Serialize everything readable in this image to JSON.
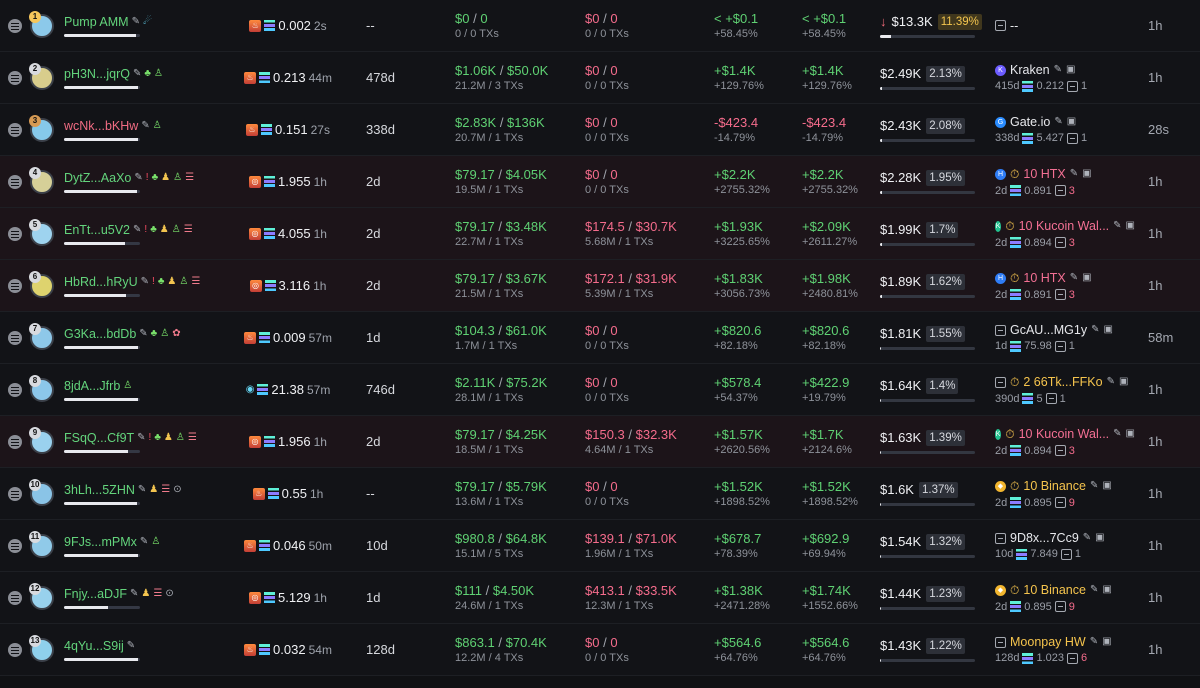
{
  "rows": [
    {
      "rank": "1",
      "name": "Pump AMM",
      "name_color": "green",
      "avatar": "#8cc9ea",
      "badge": "gold",
      "icons": [
        "✎",
        "☄"
      ],
      "price_icons": [
        "fire",
        "sol"
      ],
      "price": "0.002",
      "price_age": "2s",
      "age": "--",
      "buy_top": "$0",
      "buy_top2": "0",
      "buy_sub": "0 / 0 TXs",
      "sell_top": "$0",
      "sell_top2": "0",
      "sell_sub": "0 / 0 TXs",
      "pnl1_top": "< +$0.1",
      "pnl1_sub": "+58.45%",
      "pnl2_top": "< +$0.1",
      "pnl2_sub": "+58.45%",
      "mc_arrow": "↓",
      "mc": "$13.3K",
      "mc_pct": "11.39%",
      "mc_fill": 0.1139,
      "wallet_icon": "box",
      "wallet_name": "--",
      "wallet_sub": [],
      "time": "1h",
      "alt": false,
      "progress": 0.95
    },
    {
      "rank": "2",
      "name": "pH3N...jqrQ",
      "name_color": "green",
      "avatar": "#d8cd8c",
      "badge": "silver",
      "icons": [
        "✎",
        "♣",
        "♙"
      ],
      "price_icons": [
        "fire",
        "sol"
      ],
      "price": "0.213",
      "price_age": "44m",
      "age": "478d",
      "buy_top": "$1.06K",
      "buy_top2": "$50.0K",
      "buy_sub": "21.2M / 3 TXs",
      "sell_top": "$0",
      "sell_top2": "0",
      "sell_sub": "0 / 0 TXs",
      "pnl1_top": "+$1.4K",
      "pnl1_sub": "+129.76%",
      "pnl2_top": "+$1.4K",
      "pnl2_sub": "+129.76%",
      "mc_arrow": "",
      "mc": "$2.49K",
      "mc_pct": "2.13%",
      "mc_fill": 0.0213,
      "wallet_icon": "kraken",
      "wallet_name": "Kraken",
      "wallet_sub": [
        "415d",
        "0.212",
        "1"
      ],
      "time": "1h",
      "alt": false,
      "progress": 0.98
    },
    {
      "rank": "3",
      "name": "wcNk...bKHw",
      "name_color": "red",
      "avatar": "#86c9ea",
      "badge": "bronze",
      "icons": [
        "✎",
        "♙"
      ],
      "price_icons": [
        "fire",
        "sol"
      ],
      "price": "0.151",
      "price_age": "27s",
      "age": "338d",
      "buy_top": "$2.83K",
      "buy_top2": "$136K",
      "buy_sub": "20.7M / 1 TXs",
      "sell_top": "$0",
      "sell_top2": "0",
      "sell_sub": "0 / 0 TXs",
      "pnl1_top": "-$423.4",
      "pnl1_sub": "-14.79%",
      "pnl2_top": "-$423.4",
      "pnl2_sub": "-14.79%",
      "mc_arrow": "",
      "mc": "$2.43K",
      "mc_pct": "2.08%",
      "mc_fill": 0.0208,
      "wallet_icon": "gate",
      "wallet_name": "Gate.io",
      "wallet_sub": [
        "338d",
        "5.427",
        "1"
      ],
      "time": "28s",
      "alt": false,
      "progress": 0.97
    },
    {
      "rank": "4",
      "name": "DytZ...AaXo",
      "name_color": "green",
      "avatar": "#d6d098",
      "badge": "silver",
      "icons": [
        "✎",
        "!",
        "♣",
        "♟",
        "♙",
        "☰"
      ],
      "price_icons": [
        "swirl",
        "sol"
      ],
      "price": "1.955",
      "price_age": "1h",
      "age": "2d",
      "buy_top": "$79.17",
      "buy_top2": "$4.05K",
      "buy_sub": "19.5M / 1 TXs",
      "sell_top": "$0",
      "sell_top2": "0",
      "sell_sub": "0 / 0 TXs",
      "pnl1_top": "+$2.2K",
      "pnl1_sub": "+2755.32%",
      "pnl2_top": "+$2.2K",
      "pnl2_sub": "+2755.32%",
      "mc_arrow": "",
      "mc": "$2.28K",
      "mc_pct": "1.95%",
      "mc_fill": 0.0195,
      "wallet_icon": "htx",
      "wallet_name": "10 HTX",
      "wallet_sub": [
        "2d",
        "0.891",
        "3"
      ],
      "time": "1h",
      "alt": true,
      "progress": 0.96
    },
    {
      "rank": "5",
      "name": "EnTt...u5V2",
      "name_color": "green",
      "avatar": "#9ed3ef",
      "badge": "silver",
      "icons": [
        "✎",
        "!",
        "♣",
        "♟",
        "♙",
        "☰"
      ],
      "price_icons": [
        "swirl",
        "sol"
      ],
      "price": "4.055",
      "price_age": "1h",
      "age": "2d",
      "buy_top": "$79.17",
      "buy_top2": "$3.48K",
      "buy_sub": "22.7M / 1 TXs",
      "sell_top": "$174.5",
      "sell_top2": "$30.7K",
      "sell_sub": "5.68M / 1 TXs",
      "pnl1_top": "+$1.93K",
      "pnl1_sub": "+3225.65%",
      "pnl2_top": "+$2.09K",
      "pnl2_sub": "+2611.27%",
      "mc_arrow": "",
      "mc": "$1.99K",
      "mc_pct": "1.7%",
      "mc_fill": 0.017,
      "wallet_icon": "kucoin",
      "wallet_name": "10 Kucoin Wal...",
      "wallet_sub": [
        "2d",
        "0.894",
        "3"
      ],
      "time": "1h",
      "alt": true,
      "progress": 0.8
    },
    {
      "rank": "6",
      "name": "HbRd...hRyU",
      "name_color": "green",
      "avatar": "#ded36e",
      "badge": "silver",
      "icons": [
        "✎",
        "!",
        "♣",
        "♟",
        "♙",
        "☰"
      ],
      "price_icons": [
        "swirl",
        "sol"
      ],
      "price": "3.116",
      "price_age": "1h",
      "age": "2d",
      "buy_top": "$79.17",
      "buy_top2": "$3.67K",
      "buy_sub": "21.5M / 1 TXs",
      "sell_top": "$172.1",
      "sell_top2": "$31.9K",
      "sell_sub": "5.39M / 1 TXs",
      "pnl1_top": "+$1.83K",
      "pnl1_sub": "+3056.73%",
      "pnl2_top": "+$1.98K",
      "pnl2_sub": "+2480.81%",
      "mc_arrow": "",
      "mc": "$1.89K",
      "mc_pct": "1.62%",
      "mc_fill": 0.0162,
      "wallet_icon": "htx",
      "wallet_name": "10 HTX",
      "wallet_sub": [
        "2d",
        "0.891",
        "3"
      ],
      "time": "1h",
      "alt": true,
      "progress": 0.82
    },
    {
      "rank": "7",
      "name": "G3Ka...bdDb",
      "name_color": "green",
      "avatar": "#8ec8e9",
      "badge": "silver",
      "icons": [
        "✎",
        "♣",
        "♙",
        "✿"
      ],
      "price_icons": [
        "fire",
        "sol"
      ],
      "price": "0.009",
      "price_age": "57m",
      "age": "1d",
      "buy_top": "$104.3",
      "buy_top2": "$61.0K",
      "buy_sub": "1.7M / 1 TXs",
      "sell_top": "$0",
      "sell_top2": "0",
      "sell_sub": "0 / 0 TXs",
      "pnl1_top": "+$820.6",
      "pnl1_sub": "+82.18%",
      "pnl2_top": "+$820.6",
      "pnl2_sub": "+82.18%",
      "mc_arrow": "",
      "mc": "$1.81K",
      "mc_pct": "1.55%",
      "mc_fill": 0.0155,
      "wallet_icon": "box",
      "wallet_name": "GcAU...MG1y",
      "wallet_sub": [
        "1d",
        "75.98",
        "1"
      ],
      "time": "58m",
      "alt": false,
      "progress": 0.98
    },
    {
      "rank": "8",
      "name": "8jdA...Jfrb",
      "name_color": "green",
      "avatar": "#8cc7ea",
      "badge": "silver",
      "icons": [
        "♙"
      ],
      "price_icons": [
        "eye",
        "sol"
      ],
      "price": "21.38",
      "price_age": "57m",
      "age": "746d",
      "buy_top": "$2.11K",
      "buy_top2": "$75.2K",
      "buy_sub": "28.1M / 1 TXs",
      "sell_top": "$0",
      "sell_top2": "0",
      "sell_sub": "0 / 0 TXs",
      "pnl1_top": "+$578.4",
      "pnl1_sub": "+54.37%",
      "pnl2_top": "+$422.9",
      "pnl2_sub": "+19.79%",
      "mc_arrow": "",
      "mc": "$1.64K",
      "mc_pct": "1.4%",
      "mc_fill": 0.014,
      "wallet_icon": "box",
      "wallet_name": "2 66Tk...FFKo",
      "wallet_sub": [
        "390d",
        "5",
        "1"
      ],
      "time": "1h",
      "alt": false,
      "progress": 0.98
    },
    {
      "rank": "9",
      "name": "FSqQ...Cf9T",
      "name_color": "green",
      "avatar": "#9ad1ee",
      "badge": "silver",
      "icons": [
        "✎",
        "!",
        "♣",
        "♟",
        "♙",
        "☰"
      ],
      "price_icons": [
        "swirl",
        "sol"
      ],
      "price": "1.956",
      "price_age": "1h",
      "age": "2d",
      "buy_top": "$79.17",
      "buy_top2": "$4.25K",
      "buy_sub": "18.5M / 1 TXs",
      "sell_top": "$150.3",
      "sell_top2": "$32.3K",
      "sell_sub": "4.64M / 1 TXs",
      "pnl1_top": "+$1.57K",
      "pnl1_sub": "+2620.56%",
      "pnl2_top": "+$1.7K",
      "pnl2_sub": "+2124.6%",
      "mc_arrow": "",
      "mc": "$1.63K",
      "mc_pct": "1.39%",
      "mc_fill": 0.0139,
      "wallet_icon": "kucoin",
      "wallet_name": "10 Kucoin Wal...",
      "wallet_sub": [
        "2d",
        "0.894",
        "3"
      ],
      "time": "1h",
      "alt": true,
      "progress": 0.84
    },
    {
      "rank": "10",
      "name": "3hLh...5ZHN",
      "name_color": "green",
      "avatar": "#8ac4e7",
      "badge": "silver",
      "icons": [
        "✎",
        "♟",
        "☰",
        "⊙"
      ],
      "price_icons": [
        "fire",
        "sol"
      ],
      "price": "0.55",
      "price_age": "1h",
      "age": "--",
      "buy_top": "$79.17",
      "buy_top2": "$5.79K",
      "buy_sub": "13.6M / 1 TXs",
      "sell_top": "$0",
      "sell_top2": "0",
      "sell_sub": "0 / 0 TXs",
      "pnl1_top": "+$1.52K",
      "pnl1_sub": "+1898.52%",
      "pnl2_top": "+$1.52K",
      "pnl2_sub": "+1898.52%",
      "mc_arrow": "",
      "mc": "$1.6K",
      "mc_pct": "1.37%",
      "mc_fill": 0.0137,
      "wallet_icon": "binance",
      "wallet_name": "10 Binance",
      "wallet_sub": [
        "2d",
        "0.895",
        "9"
      ],
      "time": "1h",
      "alt": false,
      "progress": 0.96
    },
    {
      "rank": "11",
      "name": "9FJs...mPMx",
      "name_color": "green",
      "avatar": "#90cae9",
      "badge": "silver",
      "icons": [
        "✎",
        "♙"
      ],
      "price_icons": [
        "fire",
        "sol"
      ],
      "price": "0.046",
      "price_age": "50m",
      "age": "10d",
      "buy_top": "$980.8",
      "buy_top2": "$64.8K",
      "buy_sub": "15.1M / 5 TXs",
      "sell_top": "$139.1",
      "sell_top2": "$71.0K",
      "sell_sub": "1.96M / 1 TXs",
      "pnl1_top": "+$678.7",
      "pnl1_sub": "+78.39%",
      "pnl2_top": "+$692.9",
      "pnl2_sub": "+69.94%",
      "mc_arrow": "",
      "mc": "$1.54K",
      "mc_pct": "1.32%",
      "mc_fill": 0.0132,
      "wallet_icon": "box",
      "wallet_name": "9D8x...7Cc9",
      "wallet_sub": [
        "10d",
        "7.849",
        "1"
      ],
      "time": "1h",
      "alt": false,
      "progress": 0.97
    },
    {
      "rank": "12",
      "name": "Fnjy...aDJF",
      "name_color": "green",
      "avatar": "#98d1ed",
      "badge": "silver",
      "icons": [
        "✎",
        "♟",
        "☰",
        "⊙"
      ],
      "price_icons": [
        "swirl",
        "sol"
      ],
      "price": "5.129",
      "price_age": "1h",
      "age": "1d",
      "buy_top": "$111",
      "buy_top2": "$4.50K",
      "buy_sub": "24.6M / 1 TXs",
      "sell_top": "$413.1",
      "sell_top2": "$33.5K",
      "sell_sub": "12.3M / 1 TXs",
      "pnl1_top": "+$1.38K",
      "pnl1_sub": "+2471.28%",
      "pnl2_top": "+$1.74K",
      "pnl2_sub": "+1552.66%",
      "mc_arrow": "",
      "mc": "$1.44K",
      "mc_pct": "1.23%",
      "mc_fill": 0.0123,
      "wallet_icon": "binance",
      "wallet_name": "10 Binance",
      "wallet_sub": [
        "2d",
        "0.895",
        "9"
      ],
      "time": "1h",
      "alt": false,
      "progress": 0.58
    },
    {
      "rank": "13",
      "name": "4qYu...S9ij",
      "name_color": "green",
      "avatar": "#8fd0ec",
      "badge": "silver",
      "icons": [
        "✎"
      ],
      "price_icons": [
        "fire",
        "sol"
      ],
      "price": "0.032",
      "price_age": "54m",
      "age": "128d",
      "buy_top": "$863.1",
      "buy_top2": "$70.4K",
      "buy_sub": "12.2M / 4 TXs",
      "sell_top": "$0",
      "sell_top2": "0",
      "sell_sub": "0 / 0 TXs",
      "pnl1_top": "+$564.6",
      "pnl1_sub": "+64.76%",
      "pnl2_top": "+$564.6",
      "pnl2_sub": "+64.76%",
      "mc_arrow": "",
      "mc": "$1.43K",
      "mc_pct": "1.22%",
      "mc_fill": 0.0122,
      "wallet_icon": "box",
      "wallet_name": "Moonpay HW",
      "wallet_sub": [
        "128d",
        "1.023",
        "6"
      ],
      "time": "1h",
      "alt": false,
      "progress": 0.98
    }
  ]
}
